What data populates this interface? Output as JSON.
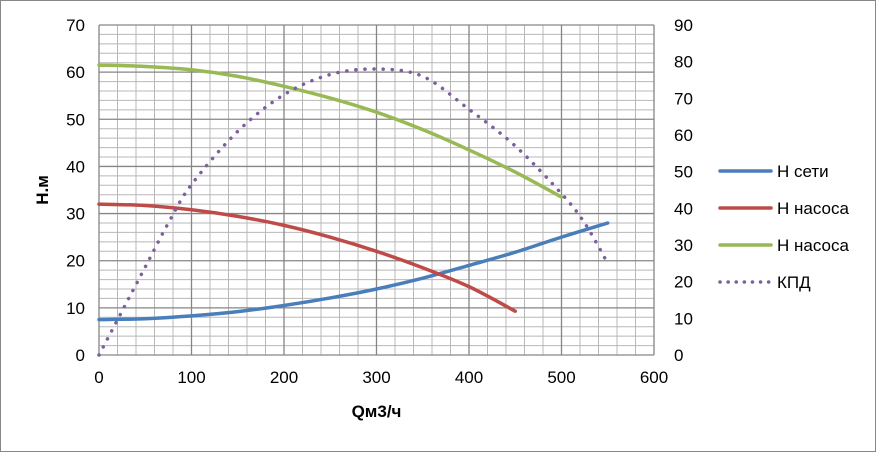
{
  "chart_data": {
    "type": "line",
    "title": "",
    "xlabel": "Qм3/ч",
    "ylabel": "Н.м",
    "xlim": [
      0,
      600
    ],
    "ylim": [
      0,
      70
    ],
    "y2lim": [
      0,
      90
    ],
    "xticks": [
      "0",
      "100",
      "200",
      "300",
      "400",
      "500",
      "600"
    ],
    "yticks": [
      "0",
      "10",
      "20",
      "30",
      "40",
      "50",
      "60",
      "70"
    ],
    "y2ticks": [
      "0",
      "10",
      "20",
      "30",
      "40",
      "50",
      "60",
      "70",
      "80",
      "90"
    ],
    "grid": true,
    "legend_position": "right",
    "series": [
      {
        "name": "Н сети",
        "axis": "left",
        "color": "#4a7ebb",
        "style": "solid",
        "x": [
          0,
          50,
          100,
          150,
          200,
          250,
          300,
          350,
          400,
          450,
          500,
          550
        ],
        "y": [
          7.5,
          7.7,
          8.3,
          9.2,
          10.5,
          12.1,
          14,
          16.3,
          19,
          21.8,
          25,
          28
        ]
      },
      {
        "name": "Н насоса",
        "axis": "left",
        "color": "#be4b48",
        "style": "solid",
        "x": [
          0,
          50,
          100,
          150,
          200,
          250,
          300,
          350,
          400,
          450
        ],
        "y": [
          32,
          31.7,
          30.8,
          29.4,
          27.5,
          25,
          22,
          18.5,
          14.5,
          9.3
        ]
      },
      {
        "name": "Н насоса",
        "axis": "left",
        "color": "#98b954",
        "style": "solid",
        "x": [
          0,
          50,
          100,
          150,
          200,
          250,
          300,
          350,
          400,
          450,
          500
        ],
        "y": [
          61.5,
          61.2,
          60.5,
          59.1,
          57,
          54.5,
          51.5,
          47.8,
          43.5,
          38.8,
          33.5
        ]
      },
      {
        "name": "КПД",
        "axis": "right",
        "color": "#7d5fa0",
        "style": "dotted",
        "x": [
          0,
          25,
          50,
          75,
          100,
          150,
          200,
          250,
          300,
          350,
          400,
          450,
          500,
          525,
          550
        ],
        "y": [
          0,
          12,
          24,
          36,
          46.5,
          61,
          71,
          76.5,
          78,
          76,
          67,
          57,
          44,
          36,
          25
        ]
      }
    ]
  }
}
